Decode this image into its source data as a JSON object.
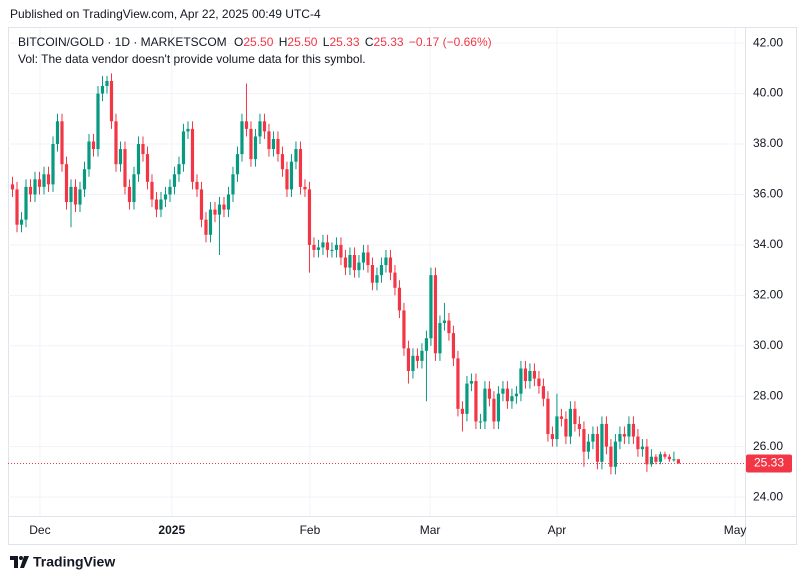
{
  "header": {
    "published": "Published on TradingView.com, Apr 22, 2025 00:49 UTC-4"
  },
  "chart_data": {
    "type": "candlestick",
    "symbol": "BITCOIN/GOLD · 1D · MARKETSCOM",
    "legend": {
      "o_label": "O",
      "open": "25.50",
      "h_label": "H",
      "high": "25.50",
      "l_label": "L",
      "low": "25.33",
      "c_label": "C",
      "close": "25.33",
      "change": "−0.17 (−0.66%)"
    },
    "volume_note": "Vol: The data vendor doesn't provide volume data for this symbol.",
    "up_color": "#089981",
    "down_color": "#f23645",
    "open": [
      36.4,
      36.2,
      34.8,
      35.0,
      36.3,
      36.0,
      36.6,
      36.3,
      36.8,
      36.4,
      38.0,
      38.9,
      37.2,
      35.7,
      36.3,
      35.6,
      36.2,
      37.0,
      38.1,
      37.8,
      40.0,
      40.3,
      40.5,
      38.9,
      37.2,
      37.8,
      36.3,
      35.7,
      36.8,
      38.0,
      37.6,
      36.5,
      35.8,
      35.4,
      35.8,
      36.0,
      36.3,
      36.8,
      37.2,
      38.5,
      38.6,
      36.5,
      36.2,
      35.0,
      34.4,
      35.4,
      35.2,
      35.6,
      35.4,
      36.0,
      36.8,
      37.6,
      38.9,
      38.6,
      37.4,
      38.3,
      38.9,
      38.5,
      37.8,
      38.2,
      37.6,
      37.0,
      36.2,
      37.3,
      37.8,
      36.3,
      36.2,
      34.0,
      33.8,
      33.9,
      34.1,
      33.8,
      33.8,
      34.0,
      33.5,
      33.1,
      33.6,
      33.0,
      33.3,
      33.7,
      33.2,
      32.5,
      32.8,
      33.2,
      33.5,
      32.9,
      32.3,
      31.4,
      29.9,
      29.0,
      29.6,
      29.4,
      29.8,
      30.3,
      32.8,
      29.7,
      30.9,
      31.0,
      30.5,
      29.5,
      27.5,
      27.3,
      28.5,
      28.6,
      27.0,
      27.0,
      28.3,
      27.9,
      27.0,
      28.1,
      28.3,
      27.8,
      28.0,
      28.1,
      29.1,
      28.6,
      29.0,
      28.7,
      28.4,
      27.9,
      26.5,
      26.3,
      27.2,
      27.1,
      26.4,
      27.5,
      26.9,
      26.7,
      25.8,
      26.2,
      26.5,
      25.4,
      26.9,
      26.0,
      25.2,
      26.2,
      26.5,
      26.4,
      26.9,
      26.4,
      25.9,
      26.0,
      25.3,
      25.6,
      25.4,
      25.7,
      25.6,
      25.5,
      25.5
    ],
    "high": [
      36.7,
      36.5,
      35.3,
      36.6,
      36.6,
      36.9,
      36.9,
      37.1,
      37.1,
      38.3,
      39.2,
      39.2,
      37.5,
      36.6,
      36.6,
      36.5,
      37.3,
      38.4,
      38.4,
      40.3,
      40.7,
      40.7,
      40.8,
      39.2,
      38.1,
      38.1,
      36.6,
      37.1,
      38.3,
      38.3,
      37.9,
      36.8,
      36.1,
      36.1,
      36.3,
      36.6,
      37.1,
      37.5,
      38.8,
      38.9,
      38.9,
      36.8,
      36.5,
      35.3,
      35.7,
      35.7,
      35.9,
      35.9,
      36.3,
      37.1,
      37.9,
      39.2,
      40.4,
      38.9,
      38.6,
      39.2,
      39.2,
      38.8,
      38.5,
      38.5,
      37.9,
      37.3,
      37.6,
      38.1,
      38.1,
      36.6,
      36.5,
      34.3,
      34.2,
      34.4,
      34.4,
      34.1,
      34.3,
      34.3,
      33.8,
      33.9,
      33.9,
      33.6,
      34.0,
      34.0,
      33.5,
      33.1,
      33.5,
      33.8,
      33.8,
      33.2,
      32.6,
      31.7,
      30.2,
      29.9,
      29.9,
      30.1,
      30.6,
      33.1,
      33.1,
      31.2,
      31.7,
      31.3,
      30.8,
      29.8,
      27.8,
      28.8,
      28.9,
      28.9,
      27.3,
      28.6,
      28.6,
      28.2,
      28.4,
      28.6,
      28.6,
      28.3,
      28.4,
      29.4,
      29.4,
      29.3,
      29.3,
      29.0,
      28.7,
      28.2,
      26.8,
      28.1,
      27.5,
      27.4,
      27.8,
      27.8,
      27.2,
      27.0,
      26.5,
      26.8,
      26.8,
      27.2,
      27.2,
      26.3,
      26.5,
      26.8,
      26.8,
      27.2,
      27.2,
      26.7,
      26.3,
      26.3,
      25.9,
      25.7,
      25.8,
      25.8,
      25.7,
      25.8,
      25.5
    ],
    "low": [
      35.9,
      34.5,
      34.5,
      34.7,
      35.7,
      35.7,
      36.0,
      36.0,
      36.1,
      36.1,
      37.7,
      36.9,
      35.4,
      34.7,
      35.3,
      35.3,
      35.9,
      36.7,
      37.5,
      37.5,
      39.7,
      40.0,
      38.6,
      36.9,
      36.9,
      36.0,
      35.4,
      35.4,
      36.5,
      37.3,
      36.2,
      35.5,
      35.1,
      35.1,
      35.5,
      35.7,
      36.0,
      36.5,
      36.9,
      38.2,
      36.2,
      35.9,
      34.7,
      34.1,
      34.1,
      34.9,
      33.6,
      35.1,
      35.1,
      35.7,
      36.5,
      37.3,
      38.3,
      37.1,
      37.1,
      38.0,
      38.2,
      37.5,
      37.5,
      37.3,
      36.7,
      35.9,
      35.9,
      37.0,
      36.0,
      35.9,
      32.9,
      33.5,
      33.5,
      33.6,
      33.5,
      33.5,
      33.5,
      33.2,
      32.8,
      32.8,
      32.7,
      32.7,
      33.0,
      32.9,
      32.2,
      32.2,
      32.5,
      32.9,
      32.6,
      32.0,
      31.1,
      29.6,
      28.5,
      28.7,
      29.1,
      29.1,
      27.8,
      30.0,
      29.4,
      29.4,
      30.6,
      30.2,
      29.2,
      27.2,
      26.6,
      27.0,
      28.2,
      26.7,
      26.7,
      26.7,
      27.6,
      26.7,
      26.7,
      27.8,
      27.5,
      27.5,
      27.7,
      27.8,
      28.3,
      28.3,
      28.4,
      28.1,
      27.6,
      26.2,
      26.0,
      26.0,
      26.8,
      26.1,
      26.1,
      26.6,
      26.4,
      25.2,
      25.5,
      25.9,
      25.1,
      25.1,
      25.7,
      24.9,
      24.9,
      25.9,
      26.1,
      26.1,
      26.1,
      25.6,
      25.6,
      25.0,
      25.2,
      25.3,
      25.3,
      25.5,
      25.4,
      25.4,
      25.33
    ],
    "close": [
      36.2,
      34.8,
      35.0,
      36.3,
      36.0,
      36.6,
      36.3,
      36.8,
      36.4,
      38.0,
      38.9,
      37.2,
      35.7,
      36.3,
      35.6,
      36.2,
      37.0,
      38.1,
      37.8,
      40.0,
      40.3,
      40.5,
      38.9,
      37.2,
      37.8,
      36.3,
      35.7,
      36.8,
      38.0,
      37.6,
      36.5,
      35.8,
      35.4,
      35.8,
      36.0,
      36.3,
      36.8,
      37.2,
      38.5,
      38.6,
      36.5,
      36.2,
      35.0,
      34.4,
      35.4,
      35.2,
      35.6,
      35.4,
      36.0,
      36.8,
      37.6,
      38.9,
      38.6,
      37.4,
      38.3,
      38.9,
      38.5,
      37.8,
      38.2,
      37.6,
      37.0,
      36.2,
      37.3,
      37.8,
      36.3,
      36.2,
      34.0,
      33.8,
      33.9,
      34.1,
      33.8,
      33.8,
      34.0,
      33.5,
      33.1,
      33.6,
      33.0,
      33.3,
      33.7,
      33.2,
      32.5,
      32.8,
      33.2,
      33.5,
      32.9,
      32.3,
      31.4,
      29.9,
      29.0,
      29.6,
      29.4,
      29.8,
      30.3,
      32.8,
      29.7,
      30.9,
      31.0,
      30.5,
      29.5,
      27.5,
      27.3,
      28.5,
      28.6,
      27.0,
      27.0,
      28.3,
      27.9,
      27.0,
      28.1,
      28.3,
      27.8,
      28.0,
      28.1,
      29.1,
      28.6,
      29.0,
      28.7,
      28.4,
      27.9,
      26.5,
      26.3,
      27.2,
      27.1,
      26.4,
      27.5,
      26.9,
      26.7,
      25.8,
      26.2,
      26.5,
      25.4,
      26.9,
      26.0,
      25.2,
      26.2,
      26.5,
      26.4,
      26.9,
      26.4,
      25.9,
      26.0,
      25.3,
      25.6,
      25.4,
      25.7,
      25.6,
      25.5,
      25.5,
      25.33
    ],
    "xlim": [
      -1,
      162.8
    ],
    "xticks": [
      {
        "value": 6.1,
        "label": "Dec"
      },
      {
        "value": 35.4,
        "label": "2025"
      },
      {
        "value": 66.1,
        "label": "Feb"
      },
      {
        "value": 92.8,
        "label": "Mar"
      },
      {
        "value": 121.0,
        "label": "Apr"
      },
      {
        "value": 160.6,
        "label": "May"
      }
    ],
    "ylim": [
      23.25,
      42.6
    ],
    "yticks": [
      {
        "value": 24,
        "label": "24.00"
      },
      {
        "value": 26,
        "label": "26.00"
      },
      {
        "value": 28,
        "label": "28.00"
      },
      {
        "value": 30,
        "label": "30.00"
      },
      {
        "value": 32,
        "label": "32.00"
      },
      {
        "value": 34,
        "label": "34.00"
      },
      {
        "value": 36,
        "label": "36.00"
      },
      {
        "value": 38,
        "label": "38.00"
      },
      {
        "value": 40,
        "label": "40.00"
      },
      {
        "value": 42,
        "label": "42.00"
      }
    ],
    "grid": true,
    "last_price_line": true
  },
  "footer": {
    "brand": "TradingView"
  }
}
